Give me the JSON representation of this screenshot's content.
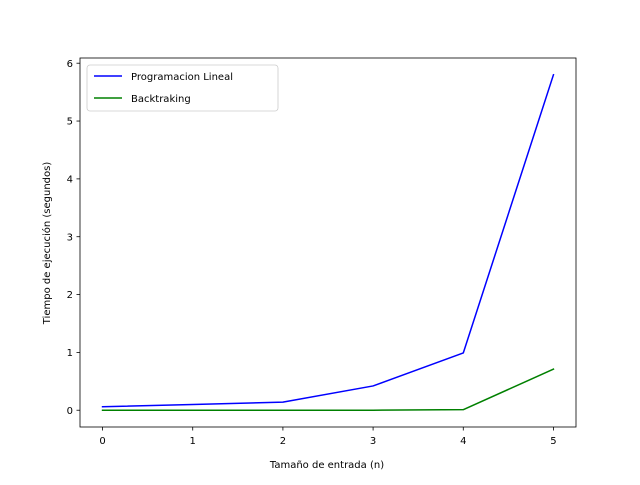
{
  "chart_data": {
    "type": "line",
    "title": "",
    "xlabel": "Tamaño de entrada (n)",
    "ylabel": "Tiempo de ejecución (segundos)",
    "x": [
      0,
      1,
      2,
      3,
      4,
      5
    ],
    "xticks": [
      "0",
      "1",
      "2",
      "3",
      "4",
      "5"
    ],
    "yticks": [
      "0",
      "1",
      "2",
      "3",
      "4",
      "5",
      "6"
    ],
    "xlim": [
      -0.25,
      5.25
    ],
    "ylim": [
      -0.29,
      6.09
    ],
    "grid": false,
    "legend_position": "upper-left",
    "series": [
      {
        "name": "Programacion Lineal",
        "color": "#0000ff",
        "values": [
          0.06,
          0.1,
          0.14,
          0.42,
          0.99,
          5.8
        ]
      },
      {
        "name": "Backtraking",
        "color": "#008000",
        "values": [
          0.0,
          0.0,
          0.0,
          0.0,
          0.01,
          0.71
        ]
      }
    ]
  }
}
